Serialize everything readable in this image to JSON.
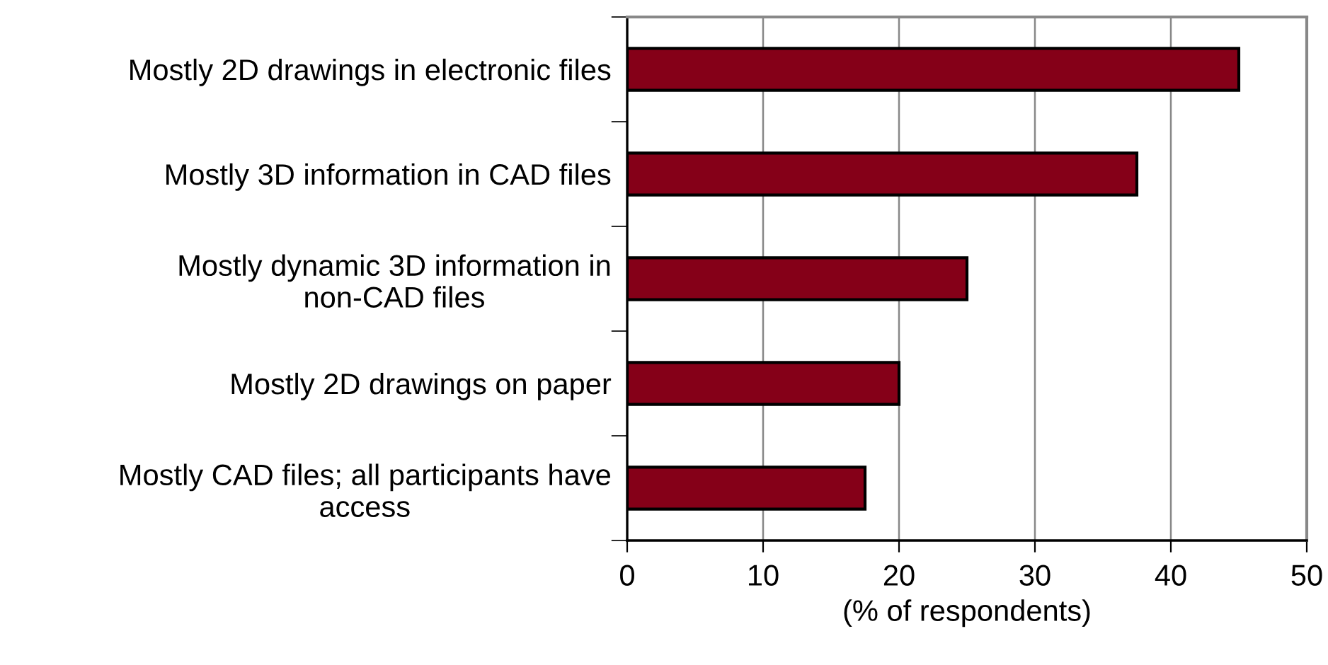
{
  "chart_data": {
    "type": "bar",
    "orientation": "horizontal",
    "xlabel": "(% of respondents)",
    "categories": [
      "Mostly 2D drawings in electronic files",
      "Mostly 3D information in CAD files",
      "Mostly dynamic 3D information in\nnon-CAD files",
      "Mostly 2D drawings on paper",
      "Mostly CAD files; all participants have\naccess"
    ],
    "values": [
      45,
      37.5,
      25,
      20,
      17.5
    ],
    "color": "#850018",
    "xlim": [
      0,
      50
    ],
    "xticks": [
      0,
      10,
      20,
      30,
      40,
      50
    ],
    "grid": "x",
    "legend": false
  }
}
